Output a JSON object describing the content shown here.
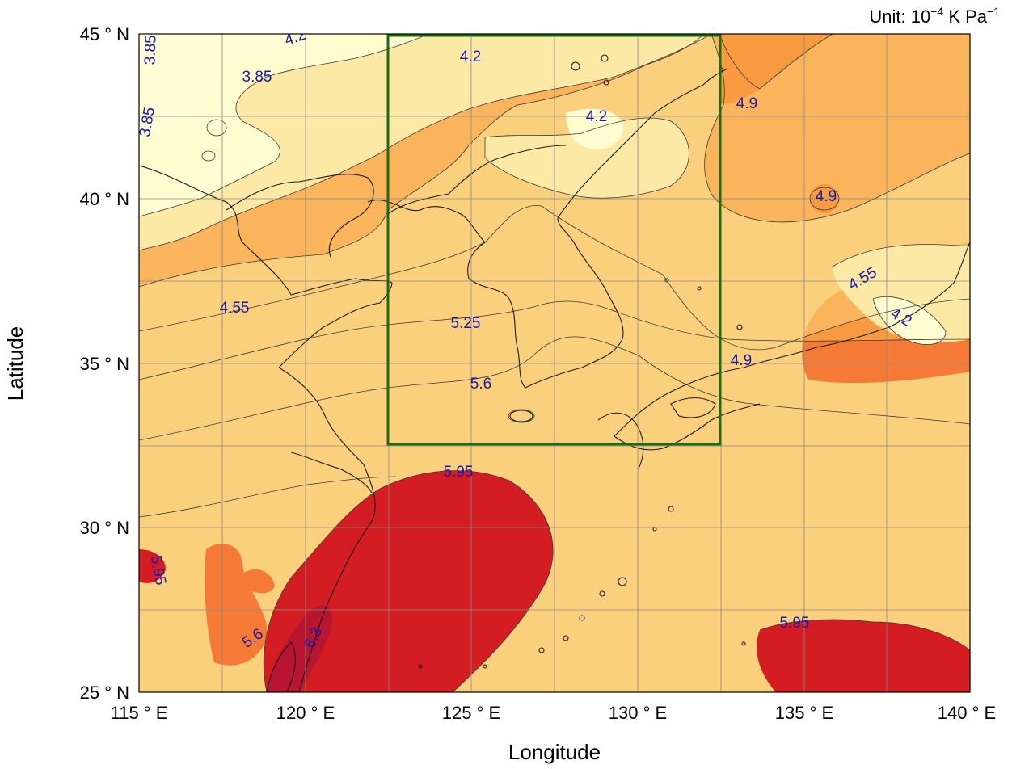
{
  "unit_label": {
    "prefix": "Unit: 10",
    "exp1": "−4",
    "mid": " K Pa",
    "exp2": "−1"
  },
  "axes": {
    "x_title": "Longitude",
    "y_title": "Latitude",
    "x_ticks": [
      "115 ° E",
      "120 ° E",
      "125 ° E",
      "130 ° E",
      "135 ° E",
      "140 ° E"
    ],
    "y_ticks": [
      "45 ° N",
      "40 ° N",
      "35 ° N",
      "30 ° N",
      "25 ° N"
    ]
  },
  "contour_labels": [
    "3.85",
    "3.85",
    "3.85",
    "4.2",
    "4.2",
    "4.2",
    "4.2",
    "4.55",
    "4.55",
    "4.9",
    "4.9",
    "4.9",
    "5.25",
    "5.6",
    "5.6",
    "5.95",
    "5.95",
    "5.95",
    "6.3"
  ],
  "colors": {
    "band1": "#fffdd0",
    "band2": "#fde9a6",
    "band3": "#fbd07c",
    "band4": "#f9b45c",
    "band5": "#f79a40",
    "band6": "#f47a35",
    "band7": "#ec4a2a",
    "band8": "#d41d23",
    "band9": "#b81530",
    "box": "#1f6b14",
    "label": "#1a1aa8"
  }
}
